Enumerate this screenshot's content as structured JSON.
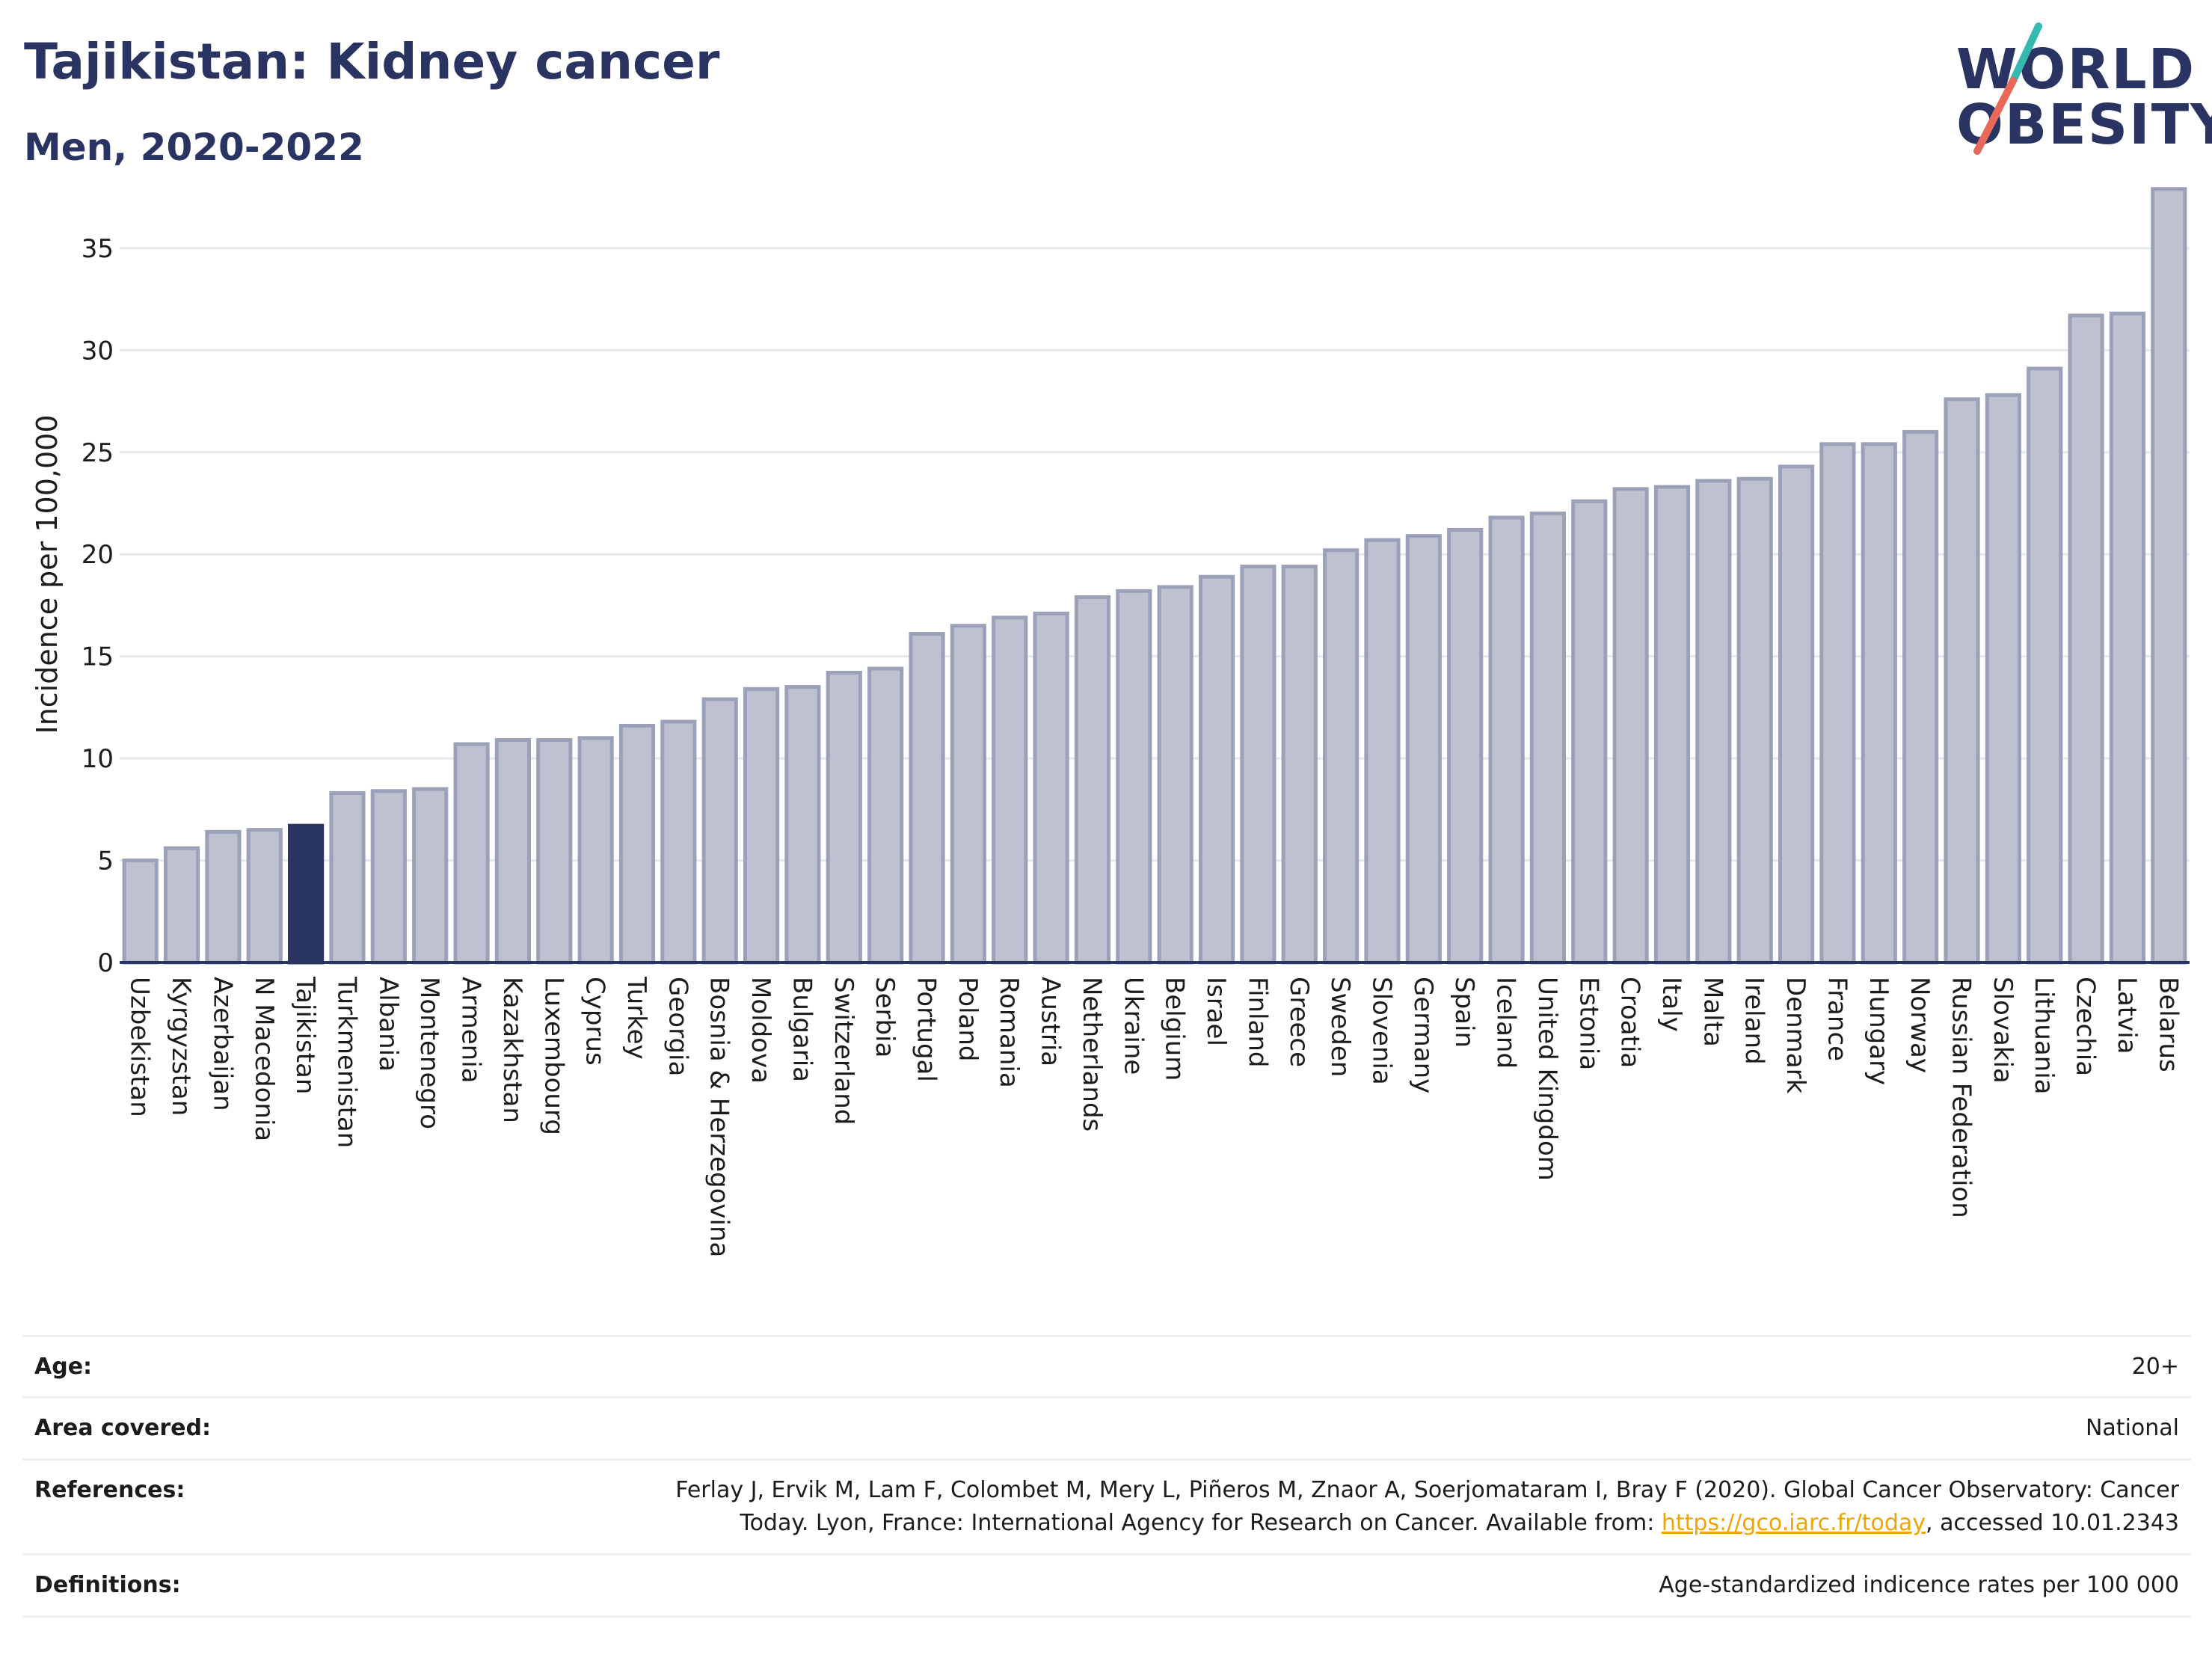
{
  "header": {
    "title": "Tajikistan: Kidney cancer",
    "subtitle": "Men, 2020-2022"
  },
  "logo": {
    "line1": "WORLD",
    "line2": "OBESITY",
    "text": "WORLD OBESITY",
    "slash_colors": [
      "#35b8b0",
      "#e8685a"
    ]
  },
  "colors": {
    "highlight_bar": "#2a3462",
    "bar_fill": "#bec2d0",
    "bar_stroke": "#9ba1b8",
    "text": "#2a3462",
    "link": "#f0a500"
  },
  "chart_data": {
    "type": "bar",
    "ylabel": "Incidence per 100,000",
    "ylim": [
      0,
      38
    ],
    "yticks": [
      0,
      5,
      10,
      15,
      20,
      25,
      30,
      35
    ],
    "grid": true,
    "highlight": "Tajikistan",
    "categories": [
      "Uzbekistan",
      "Kyrgyzstan",
      "Azerbaijan",
      "N Macedonia",
      "Tajikistan",
      "Turkmenistan",
      "Albania",
      "Montenegro",
      "Armenia",
      "Kazakhstan",
      "Luxembourg",
      "Cyprus",
      "Turkey",
      "Georgia",
      "Bosnia & Herzegovina",
      "Moldova",
      "Bulgaria",
      "Switzerland",
      "Serbia",
      "Portugal",
      "Poland",
      "Romania",
      "Austria",
      "Netherlands",
      "Ukraine",
      "Belgium",
      "Israel",
      "Finland",
      "Greece",
      "Sweden",
      "Slovenia",
      "Germany",
      "Spain",
      "Iceland",
      "United Kingdom",
      "Estonia",
      "Croatia",
      "Italy",
      "Malta",
      "Ireland",
      "Denmark",
      "France",
      "Hungary",
      "Norway",
      "Russian Federation",
      "Slovakia",
      "Lithuania",
      "Czechia",
      "Latvia",
      "Belarus"
    ],
    "values": [
      5.0,
      5.6,
      6.4,
      6.5,
      6.7,
      8.3,
      8.4,
      8.5,
      10.7,
      10.9,
      10.9,
      11.0,
      11.6,
      11.8,
      12.9,
      13.4,
      13.5,
      14.2,
      14.4,
      16.1,
      16.5,
      16.9,
      17.1,
      17.9,
      18.2,
      18.4,
      18.9,
      19.4,
      19.4,
      20.2,
      20.7,
      20.9,
      21.2,
      21.8,
      22.0,
      22.6,
      23.2,
      23.3,
      23.6,
      23.7,
      24.3,
      25.4,
      25.4,
      26.0,
      27.6,
      27.8,
      29.1,
      31.7,
      31.8,
      37.9
    ]
  },
  "footer": {
    "age_label": "Age:",
    "age_value": "20+",
    "area_label": "Area covered:",
    "area_value": "National",
    "references_label": "References:",
    "references_line1": "Ferlay J, Ervik M, Lam F, Colombet M, Mery L, Piñeros M, Znaor A, Soerjomataram I, Bray F (2020). Global Cancer Observatory: Cancer",
    "references_line2_pre": "Today. Lyon, France: International Agency for Research on Cancer. Available from: ",
    "references_link": "https://gco.iarc.fr/today",
    "references_line2_post": ", accessed 10.01.2343",
    "definitions_label": "Definitions:",
    "definitions_value": "Age-standardized indicence rates per 100 000"
  }
}
